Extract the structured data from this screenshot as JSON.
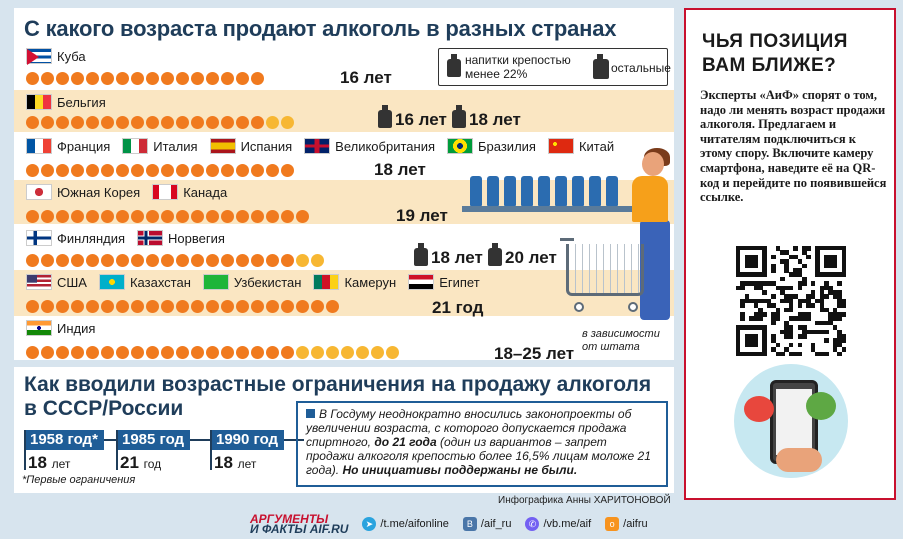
{
  "main": {
    "title": "С какого возраста продают алкоголь в разных странах",
    "legend": {
      "weak": "напитки крепостью менее 22%",
      "other": "остальные"
    },
    "rows": [
      {
        "countries": [
          "Куба"
        ],
        "orange": 16,
        "yellow": 0,
        "age_label": "16 лет"
      },
      {
        "countries": [
          "Бельгия"
        ],
        "orange": 16,
        "yellow": 2,
        "age_label_weak": "16 лет",
        "age_label_strong": "18 лет"
      },
      {
        "countries": [
          "Франция",
          "Италия",
          "Испания",
          "Великобритания",
          "Бразилия",
          "Китай"
        ],
        "orange": 18,
        "yellow": 0,
        "age_label": "18 лет"
      },
      {
        "countries": [
          "Южная Корея",
          "Канада"
        ],
        "orange": 19,
        "yellow": 0,
        "age_label": "19 лет"
      },
      {
        "countries": [
          "Финляндия",
          "Норвегия"
        ],
        "orange": 18,
        "yellow": 2,
        "age_label_weak": "18 лет",
        "age_label_strong": "20 лет"
      },
      {
        "countries": [
          "США",
          "Казахстан",
          "Узбекистан",
          "Камерун",
          "Египет"
        ],
        "orange": 21,
        "yellow": 0,
        "age_label": "21 год"
      },
      {
        "countries": [
          "Индия"
        ],
        "orange": 18,
        "yellow": 7,
        "age_label": "18–25 лет"
      }
    ],
    "state_note": "в зависимости от штата"
  },
  "ussr": {
    "title": "Как вводили возрастные ограничения на продажу алкоголя в СССР/России",
    "timeline": [
      {
        "year": "1958 год*",
        "age": "18",
        "unit": "лет"
      },
      {
        "year": "1985 год",
        "age": "21",
        "unit": "год"
      },
      {
        "year": "1990 год",
        "age": "18",
        "unit": "лет"
      }
    ],
    "footnote": "*Первые ограничения",
    "info_part1": "В Госдуму неоднократно вносились законопроекты об увеличении возраста, с которого допускается продажа спиртного, ",
    "info_bold1": "до 21 года",
    "info_part2": " (один из вариантов – запрет продажи алкоголя крепостью более 16,5% лицам моложе 21 года). ",
    "info_bold2": "Но инициативы поддержаны не были."
  },
  "credit": "Инфографика Анны ХАРИТОНОВОЙ",
  "side": {
    "title": "ЧЬЯ ПОЗИЦИЯ ВАМ БЛИЖЕ?",
    "text": "Эксперты «АиФ» спорят о том, надо ли менять возраст продажи алкоголя. Предлагаем и читателям подключиться к этому спору. Включите камеру смартфона, наведите её на QR-код и перейдите по появившейся ссылке."
  },
  "footer": {
    "logo_top": "АРГУМЕНТЫ",
    "logo_bottom": "И ФАКТЫ AIF.RU",
    "links": [
      "/t.me/aifonline",
      "/aif_ru",
      "/vb.me/aif",
      "/aifru"
    ]
  },
  "colors": {
    "orange": "#f07a1e",
    "yellow": "#f7b733",
    "navy": "#1f3d5a",
    "blue": "#1f5d97",
    "red": "#c8102e"
  }
}
